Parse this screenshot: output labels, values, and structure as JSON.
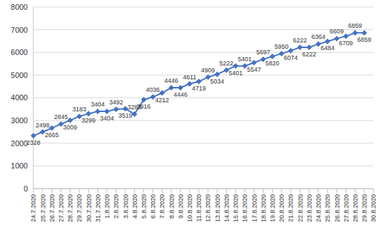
{
  "chart_data": {
    "type": "line",
    "categories": [
      "24.7.2020",
      "25.7.2020",
      "26.7.2020",
      "27.7.2020",
      "28.7.2020",
      "29.7.2020",
      "30.7.2020",
      "31.7.2020",
      "1.8.2020",
      "2.8.2020",
      "3.8.2020",
      "4.8.2020",
      "5.8.2020",
      "6.8.2020",
      "7.8.2020",
      "8.8.2020",
      "9.8.2020",
      "10.8.2020",
      "11.8.2020",
      "12.8.2020",
      "13.8.2020",
      "14.8.2020",
      "15.8.2020",
      "16.8.2020",
      "17.8.2020",
      "18.8.2020",
      "19.8.2020",
      "20.8.2020",
      "21.8.2020",
      "22.8.2020",
      "23.8.2020",
      "24.8.2020",
      "25.8.2020",
      "26.8.2020",
      "27.8.2020",
      "28.8.2020",
      "29.8.2020",
      "30.8.2020"
    ],
    "values": [
      2328,
      2498,
      2665,
      2845,
      3009,
      3183,
      3299,
      3404,
      3404,
      3492,
      3519,
      3283,
      3916,
      4036,
      4212,
      4446,
      4446,
      4611,
      4719,
      4909,
      5034,
      5222,
      5401,
      5401,
      5547,
      5697,
      5820,
      5950,
      6074,
      6222,
      6222,
      6364,
      6484,
      6609,
      6709,
      6859,
      6859,
      null
    ],
    "color": "#4472c4",
    "marker": "diamond",
    "ylim": [
      0,
      8000
    ],
    "yticks": [
      0,
      1000,
      2000,
      3000,
      4000,
      5000,
      6000,
      7000,
      8000
    ],
    "grid": true,
    "data_labels": true
  }
}
